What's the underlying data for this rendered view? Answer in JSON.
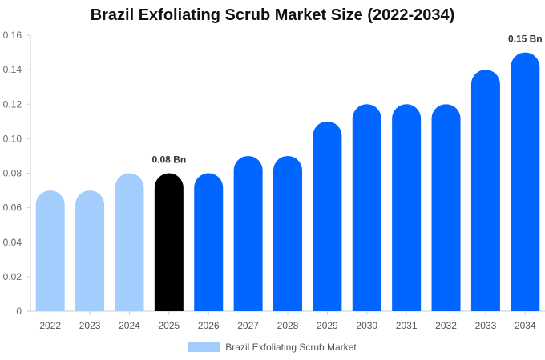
{
  "chart_data": {
    "type": "bar",
    "title": "Brazil Exfoliating Scrub Market Size (2022-2034)",
    "xlabel": "",
    "ylabel": "",
    "ylim": [
      0,
      0.16
    ],
    "yticks": [
      "0",
      "0.02",
      "0.04",
      "0.06",
      "0.08",
      "0.10",
      "0.12",
      "0.14",
      "0.16"
    ],
    "categories": [
      "2022",
      "2023",
      "2024",
      "2025",
      "2026",
      "2027",
      "2028",
      "2029",
      "2030",
      "2031",
      "2032",
      "2033",
      "2034"
    ],
    "series": [
      {
        "name": "Brazil Exfoliating Scrub Market",
        "values": [
          0.07,
          0.07,
          0.08,
          0.08,
          0.08,
          0.09,
          0.09,
          0.11,
          0.12,
          0.12,
          0.12,
          0.14,
          0.15
        ]
      }
    ],
    "bar_colors": [
      "#a3cdfd",
      "#a3cdfd",
      "#a3cdfd",
      "#000000",
      "#0066ff",
      "#0066ff",
      "#0066ff",
      "#0066ff",
      "#0066ff",
      "#0066ff",
      "#0066ff",
      "#0066ff",
      "#0066ff"
    ],
    "annotations": [
      {
        "category": "2025",
        "text": "0.08 Bn"
      },
      {
        "category": "2034",
        "text": "0.15 Bn"
      }
    ],
    "legend": {
      "label": "Brazil Exfoliating Scrub Market",
      "color": "#a3cdfd",
      "position": "bottom"
    },
    "grid": false
  }
}
